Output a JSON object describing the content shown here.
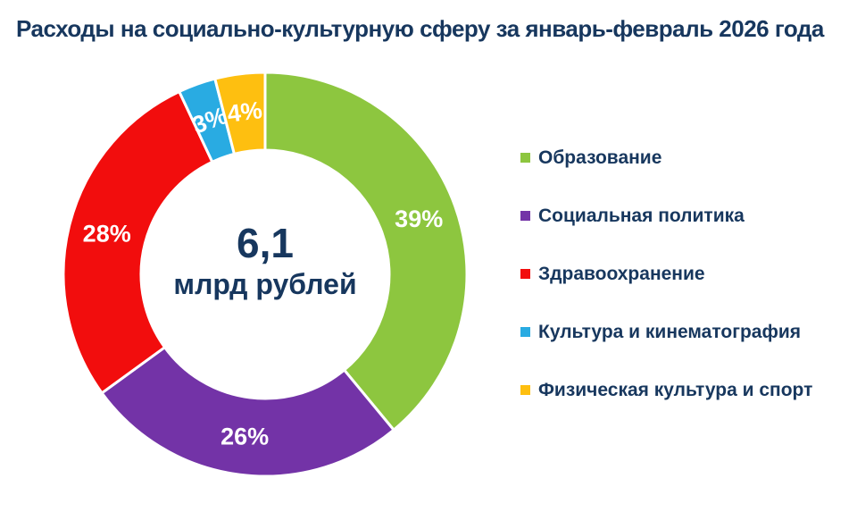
{
  "colors": {
    "background": "#FFFFFF",
    "text": "#17375E",
    "data_label": "#FFFFFF",
    "slice_gap": "#FFFFFF"
  },
  "title": {
    "text": "Расходы на социально-культурную сферу за январь-февраль 2026 года"
  },
  "chart_data": {
    "type": "pie",
    "subtype": "donut",
    "direction": "clockwise",
    "start_angle_deg": 0,
    "legend_position": "right",
    "grid": false,
    "center_label": {
      "value": "6,1",
      "unit": "млрд рублей"
    },
    "slices": [
      {
        "label": "Образование",
        "value_percent": 39,
        "data_label": "39%",
        "color": "#8DC63F"
      },
      {
        "label": "Социальная политика",
        "value_percent": 26,
        "data_label": "26%",
        "color": "#7333A7"
      },
      {
        "label": "Здравоохранение",
        "value_percent": 28,
        "data_label": "28%",
        "color": "#F20D0D"
      },
      {
        "label": "Культура и кинематография",
        "value_percent": 3,
        "data_label": "3%",
        "color": "#29ABE2"
      },
      {
        "label": "Физическая культура и спорт",
        "value_percent": 4,
        "data_label": "4%",
        "color": "#FEBF10"
      }
    ]
  }
}
